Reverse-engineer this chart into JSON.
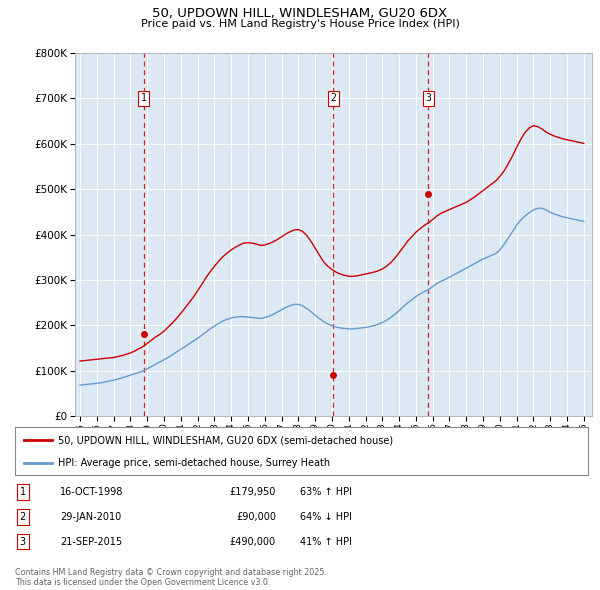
{
  "title": "50, UPDOWN HILL, WINDLESHAM, GU20 6DX",
  "subtitle": "Price paid vs. HM Land Registry's House Price Index (HPI)",
  "background_color": "#ffffff",
  "plot_bg_color": "#dce9f5",
  "ylim": [
    0,
    800000
  ],
  "yticks": [
    0,
    100000,
    200000,
    300000,
    400000,
    500000,
    600000,
    700000,
    800000
  ],
  "ytick_labels": [
    "£0",
    "£100K",
    "£200K",
    "£300K",
    "£400K",
    "£500K",
    "£600K",
    "£700K",
    "£800K"
  ],
  "xlim_start": 1994.7,
  "xlim_end": 2025.5,
  "sale_dates": [
    1998.79,
    2010.08,
    2015.73
  ],
  "sale_prices": [
    179950,
    90000,
    490000
  ],
  "sale_labels": [
    "1",
    "2",
    "3"
  ],
  "red_line_color": "#cc0000",
  "blue_line_color": "#6699cc",
  "vline_color": "#cc0000",
  "legend_line1": "50, UPDOWN HILL, WINDLESHAM, GU20 6DX (semi-detached house)",
  "legend_line2": "HPI: Average price, semi-detached house, Surrey Heath",
  "transactions": [
    {
      "num": "1",
      "date": "16-OCT-1998",
      "price": "£179,950",
      "hpi": "63% ↑ HPI"
    },
    {
      "num": "2",
      "date": "29-JAN-2010",
      "price": "£90,000",
      "hpi": "64% ↓ HPI"
    },
    {
      "num": "3",
      "date": "21-SEP-2015",
      "price": "£490,000",
      "hpi": "41% ↑ HPI"
    }
  ],
  "footer": "Contains HM Land Registry data © Crown copyright and database right 2025.\nThis data is licensed under the Open Government Licence v3.0.",
  "red_x": [
    1995.0,
    1995.25,
    1995.5,
    1995.75,
    1996.0,
    1996.25,
    1996.5,
    1996.75,
    1997.0,
    1997.25,
    1997.5,
    1997.75,
    1998.0,
    1998.25,
    1998.5,
    1998.75,
    1999.0,
    1999.25,
    1999.5,
    1999.75,
    2000.0,
    2000.25,
    2000.5,
    2000.75,
    2001.0,
    2001.25,
    2001.5,
    2001.75,
    2002.0,
    2002.25,
    2002.5,
    2002.75,
    2003.0,
    2003.25,
    2003.5,
    2003.75,
    2004.0,
    2004.25,
    2004.5,
    2004.75,
    2005.0,
    2005.25,
    2005.5,
    2005.75,
    2006.0,
    2006.25,
    2006.5,
    2006.75,
    2007.0,
    2007.25,
    2007.5,
    2007.75,
    2008.0,
    2008.25,
    2008.5,
    2008.75,
    2009.0,
    2009.25,
    2009.5,
    2009.75,
    2010.0,
    2010.25,
    2010.5,
    2010.75,
    2011.0,
    2011.25,
    2011.5,
    2011.75,
    2012.0,
    2012.25,
    2012.5,
    2012.75,
    2013.0,
    2013.25,
    2013.5,
    2013.75,
    2014.0,
    2014.25,
    2014.5,
    2014.75,
    2015.0,
    2015.25,
    2015.5,
    2015.75,
    2016.0,
    2016.25,
    2016.5,
    2016.75,
    2017.0,
    2017.25,
    2017.5,
    2017.75,
    2018.0,
    2018.25,
    2018.5,
    2018.75,
    2019.0,
    2019.25,
    2019.5,
    2019.75,
    2020.0,
    2020.25,
    2020.5,
    2020.75,
    2021.0,
    2021.25,
    2021.5,
    2021.75,
    2022.0,
    2022.25,
    2022.5,
    2022.75,
    2023.0,
    2023.25,
    2023.5,
    2023.75,
    2024.0,
    2024.25,
    2024.5,
    2024.75,
    2025.0
  ],
  "red_y": [
    121000,
    122000,
    123000,
    124000,
    125000,
    126000,
    127000,
    128000,
    129000,
    131000,
    133000,
    136000,
    139000,
    143000,
    148000,
    153000,
    160000,
    167000,
    174000,
    180000,
    187000,
    196000,
    205000,
    215000,
    226000,
    238000,
    250000,
    262000,
    276000,
    290000,
    305000,
    318000,
    330000,
    341000,
    351000,
    359000,
    366000,
    372000,
    377000,
    381000,
    382000,
    381000,
    379000,
    376000,
    377000,
    380000,
    384000,
    389000,
    395000,
    401000,
    406000,
    410000,
    411000,
    407000,
    398000,
    385000,
    370000,
    355000,
    340000,
    330000,
    323000,
    317000,
    313000,
    310000,
    308000,
    308000,
    309000,
    311000,
    313000,
    315000,
    317000,
    320000,
    324000,
    330000,
    338000,
    348000,
    360000,
    372000,
    385000,
    395000,
    405000,
    413000,
    420000,
    426000,
    433000,
    441000,
    447000,
    451000,
    455000,
    459000,
    463000,
    467000,
    471000,
    477000,
    483000,
    490000,
    497000,
    504000,
    511000,
    518000,
    528000,
    540000,
    556000,
    573000,
    592000,
    610000,
    625000,
    635000,
    640000,
    638000,
    633000,
    626000,
    621000,
    617000,
    614000,
    611000,
    609000,
    607000,
    605000,
    603000,
    601000
  ],
  "blue_x": [
    1995.0,
    1995.25,
    1995.5,
    1995.75,
    1996.0,
    1996.25,
    1996.5,
    1996.75,
    1997.0,
    1997.25,
    1997.5,
    1997.75,
    1998.0,
    1998.25,
    1998.5,
    1998.75,
    1999.0,
    1999.25,
    1999.5,
    1999.75,
    2000.0,
    2000.25,
    2000.5,
    2000.75,
    2001.0,
    2001.25,
    2001.5,
    2001.75,
    2002.0,
    2002.25,
    2002.5,
    2002.75,
    2003.0,
    2003.25,
    2003.5,
    2003.75,
    2004.0,
    2004.25,
    2004.5,
    2004.75,
    2005.0,
    2005.25,
    2005.5,
    2005.75,
    2006.0,
    2006.25,
    2006.5,
    2006.75,
    2007.0,
    2007.25,
    2007.5,
    2007.75,
    2008.0,
    2008.25,
    2008.5,
    2008.75,
    2009.0,
    2009.25,
    2009.5,
    2009.75,
    2010.0,
    2010.25,
    2010.5,
    2010.75,
    2011.0,
    2011.25,
    2011.5,
    2011.75,
    2012.0,
    2012.25,
    2012.5,
    2012.75,
    2013.0,
    2013.25,
    2013.5,
    2013.75,
    2014.0,
    2014.25,
    2014.5,
    2014.75,
    2015.0,
    2015.25,
    2015.5,
    2015.75,
    2016.0,
    2016.25,
    2016.5,
    2016.75,
    2017.0,
    2017.25,
    2017.5,
    2017.75,
    2018.0,
    2018.25,
    2018.5,
    2018.75,
    2019.0,
    2019.25,
    2019.5,
    2019.75,
    2020.0,
    2020.25,
    2020.5,
    2020.75,
    2021.0,
    2021.25,
    2021.5,
    2021.75,
    2022.0,
    2022.25,
    2022.5,
    2022.75,
    2023.0,
    2023.25,
    2023.5,
    2023.75,
    2024.0,
    2024.25,
    2024.5,
    2024.75,
    2025.0
  ],
  "blue_y": [
    68000,
    69000,
    70000,
    71000,
    72000,
    73000,
    75000,
    77000,
    79000,
    81000,
    84000,
    87000,
    90000,
    93000,
    96000,
    99000,
    104000,
    109000,
    114000,
    119000,
    124000,
    129000,
    135000,
    141000,
    147000,
    153000,
    159000,
    165000,
    171000,
    178000,
    185000,
    192000,
    198000,
    204000,
    209000,
    213000,
    216000,
    218000,
    219000,
    219000,
    218000,
    217000,
    216000,
    215000,
    217000,
    220000,
    224000,
    229000,
    234000,
    239000,
    243000,
    246000,
    246000,
    243000,
    237000,
    230000,
    222000,
    215000,
    208000,
    203000,
    199000,
    196000,
    194000,
    193000,
    192000,
    192000,
    193000,
    194000,
    195000,
    197000,
    199000,
    202000,
    206000,
    211000,
    217000,
    224000,
    232000,
    241000,
    249000,
    256000,
    263000,
    269000,
    274000,
    279000,
    285000,
    292000,
    297000,
    301000,
    306000,
    311000,
    316000,
    321000,
    326000,
    331000,
    336000,
    341000,
    346000,
    350000,
    354000,
    358000,
    366000,
    378000,
    392000,
    406000,
    421000,
    432000,
    441000,
    448000,
    454000,
    458000,
    458000,
    454000,
    449000,
    445000,
    442000,
    439000,
    437000,
    435000,
    433000,
    431000,
    429000
  ]
}
